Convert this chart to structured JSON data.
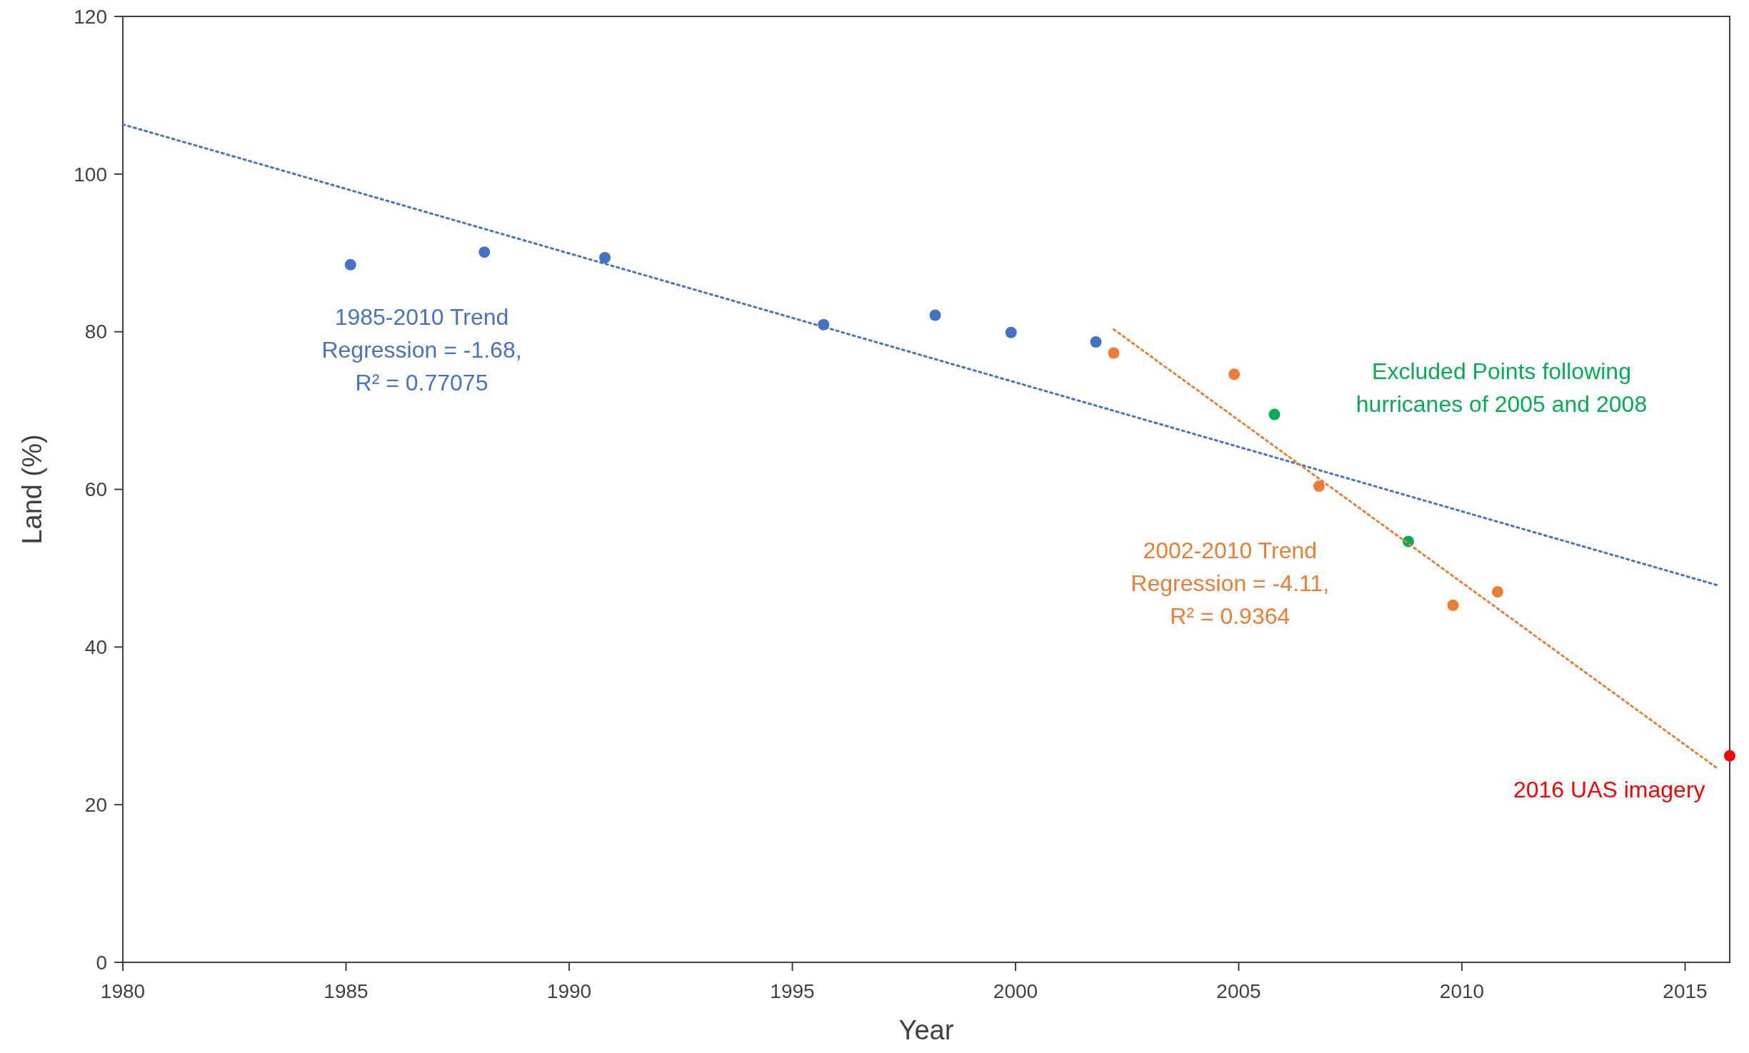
{
  "chart_data": {
    "type": "scatter",
    "xlabel": "Year",
    "ylabel": "Land (%)",
    "xlim": [
      1980,
      2016
    ],
    "ylim": [
      0,
      120
    ],
    "xticks": [
      1980,
      1985,
      1990,
      1995,
      2000,
      2005,
      2010,
      2015
    ],
    "yticks": [
      0,
      20,
      40,
      60,
      80,
      100,
      120
    ],
    "grid": false,
    "marker": "circle",
    "series": [
      {
        "color": "#4472c4",
        "x": [
          1985.1,
          1988.1,
          1990.8,
          1995.7,
          1998.2,
          1999.9,
          2001.8
        ],
        "values": [
          88.5,
          90.1,
          89.4,
          80.9,
          82.1,
          79.9,
          78.7
        ]
      },
      {
        "color": "#ed7d31",
        "x": [
          2002.2,
          2004.9,
          2006.8,
          2009.8,
          2010.8
        ],
        "values": [
          77.3,
          74.6,
          60.4,
          45.3,
          47.0
        ]
      },
      {
        "color": "#00b050",
        "x": [
          2005.8,
          2008.8
        ],
        "values": [
          69.5,
          53.4
        ]
      },
      {
        "color": "#ff0000",
        "x": [
          2016.0
        ],
        "values": [
          26.2
        ]
      },
      {
        "type": "line",
        "marker": "none",
        "line_style": "dotted",
        "color": "#4472c4",
        "x": [
          1980,
          2015.75
        ],
        "values": [
          106.3,
          47.8
        ]
      },
      {
        "type": "line",
        "marker": "none",
        "line_style": "dotted",
        "color": "#ed7d31",
        "x": [
          2002.2,
          2015.75
        ],
        "values": [
          80.3,
          24.5
        ]
      }
    ],
    "annotations": [
      "1985-2010 Trend\nRegression = -1.68,\nR² = 0.77075",
      "2002-2010 Trend\nRegression = -4.11,\nR² = 0.9364",
      "Excluded Points following\nhurricanes of 2005 and 2008",
      "2016 UAS imagery"
    ]
  }
}
